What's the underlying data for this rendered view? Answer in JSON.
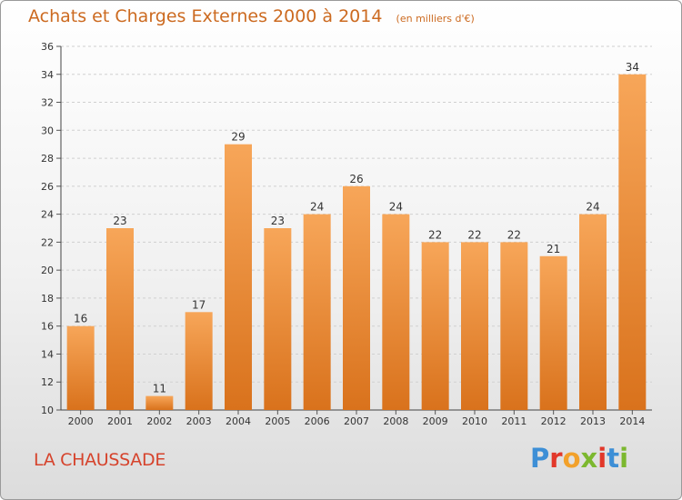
{
  "header": {
    "title": "Achats et Charges Externes 2000 à 2014",
    "subtitle": "(en milliers d'€)"
  },
  "footer": {
    "place": "LA CHAUSSADE",
    "logo_text": "Proxiti",
    "logo_colors": [
      "#3d8fd6",
      "#e2382a",
      "#f2a12b",
      "#7cb82f",
      "#e2382a",
      "#3d8fd6",
      "#7cb82f"
    ]
  },
  "colors": {
    "bar_light": "#f7a659",
    "bar_dark": "#d9721c",
    "title": "#cc6a20",
    "place": "#d6432c",
    "grid": "#d0d0d0"
  },
  "chart_data": {
    "type": "bar",
    "title": "Achats et Charges Externes 2000 à 2014",
    "subtitle": "(en milliers d'€)",
    "categories": [
      "2000",
      "2001",
      "2002",
      "2003",
      "2004",
      "2005",
      "2006",
      "2007",
      "2008",
      "2009",
      "2010",
      "2011",
      "2012",
      "2013",
      "2014"
    ],
    "values": [
      16,
      23,
      11,
      17,
      29,
      23,
      24,
      26,
      24,
      22,
      22,
      22,
      21,
      24,
      34
    ],
    "ylim": [
      10,
      36
    ],
    "yticks": [
      10,
      12,
      14,
      16,
      18,
      20,
      22,
      24,
      26,
      28,
      30,
      32,
      34,
      36
    ],
    "grid": true,
    "data_labels": true
  }
}
